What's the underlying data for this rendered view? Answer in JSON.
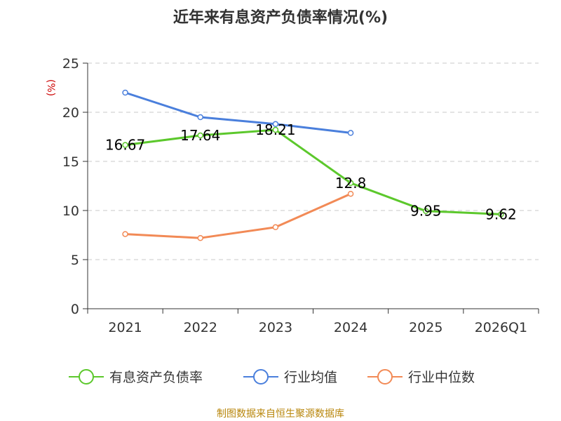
{
  "chart_data": {
    "type": "line",
    "title": "近年来有息资产负债率情况(%)",
    "unit_label": "(%)",
    "categories": [
      "2021",
      "2022",
      "2023",
      "2024",
      "2025",
      "2026Q1"
    ],
    "ylim": [
      0,
      25
    ],
    "yticks": [
      0,
      5,
      10,
      15,
      20,
      25
    ],
    "grid": "horizontal dashed",
    "legend_position": "bottom",
    "series": [
      {
        "name": "有息资产负债率",
        "color": "#5cc82c",
        "values": [
          16.67,
          17.64,
          18.21,
          12.8,
          9.95,
          9.62
        ],
        "labels": [
          "16.67",
          "17.64",
          "18.21",
          "12.8",
          "9.95",
          "9.62"
        ]
      },
      {
        "name": "行业均值",
        "color": "#4a7fdc",
        "values": [
          22.0,
          19.5,
          18.8,
          17.9,
          null,
          null
        ]
      },
      {
        "name": "行业中位数",
        "color": "#f28a56",
        "values": [
          7.6,
          7.2,
          8.3,
          11.7,
          null,
          null
        ]
      }
    ]
  },
  "source": {
    "text": "制图数据来自恒生聚源数据库",
    "color": "#b8860b"
  },
  "unit_color": "#cc0000"
}
